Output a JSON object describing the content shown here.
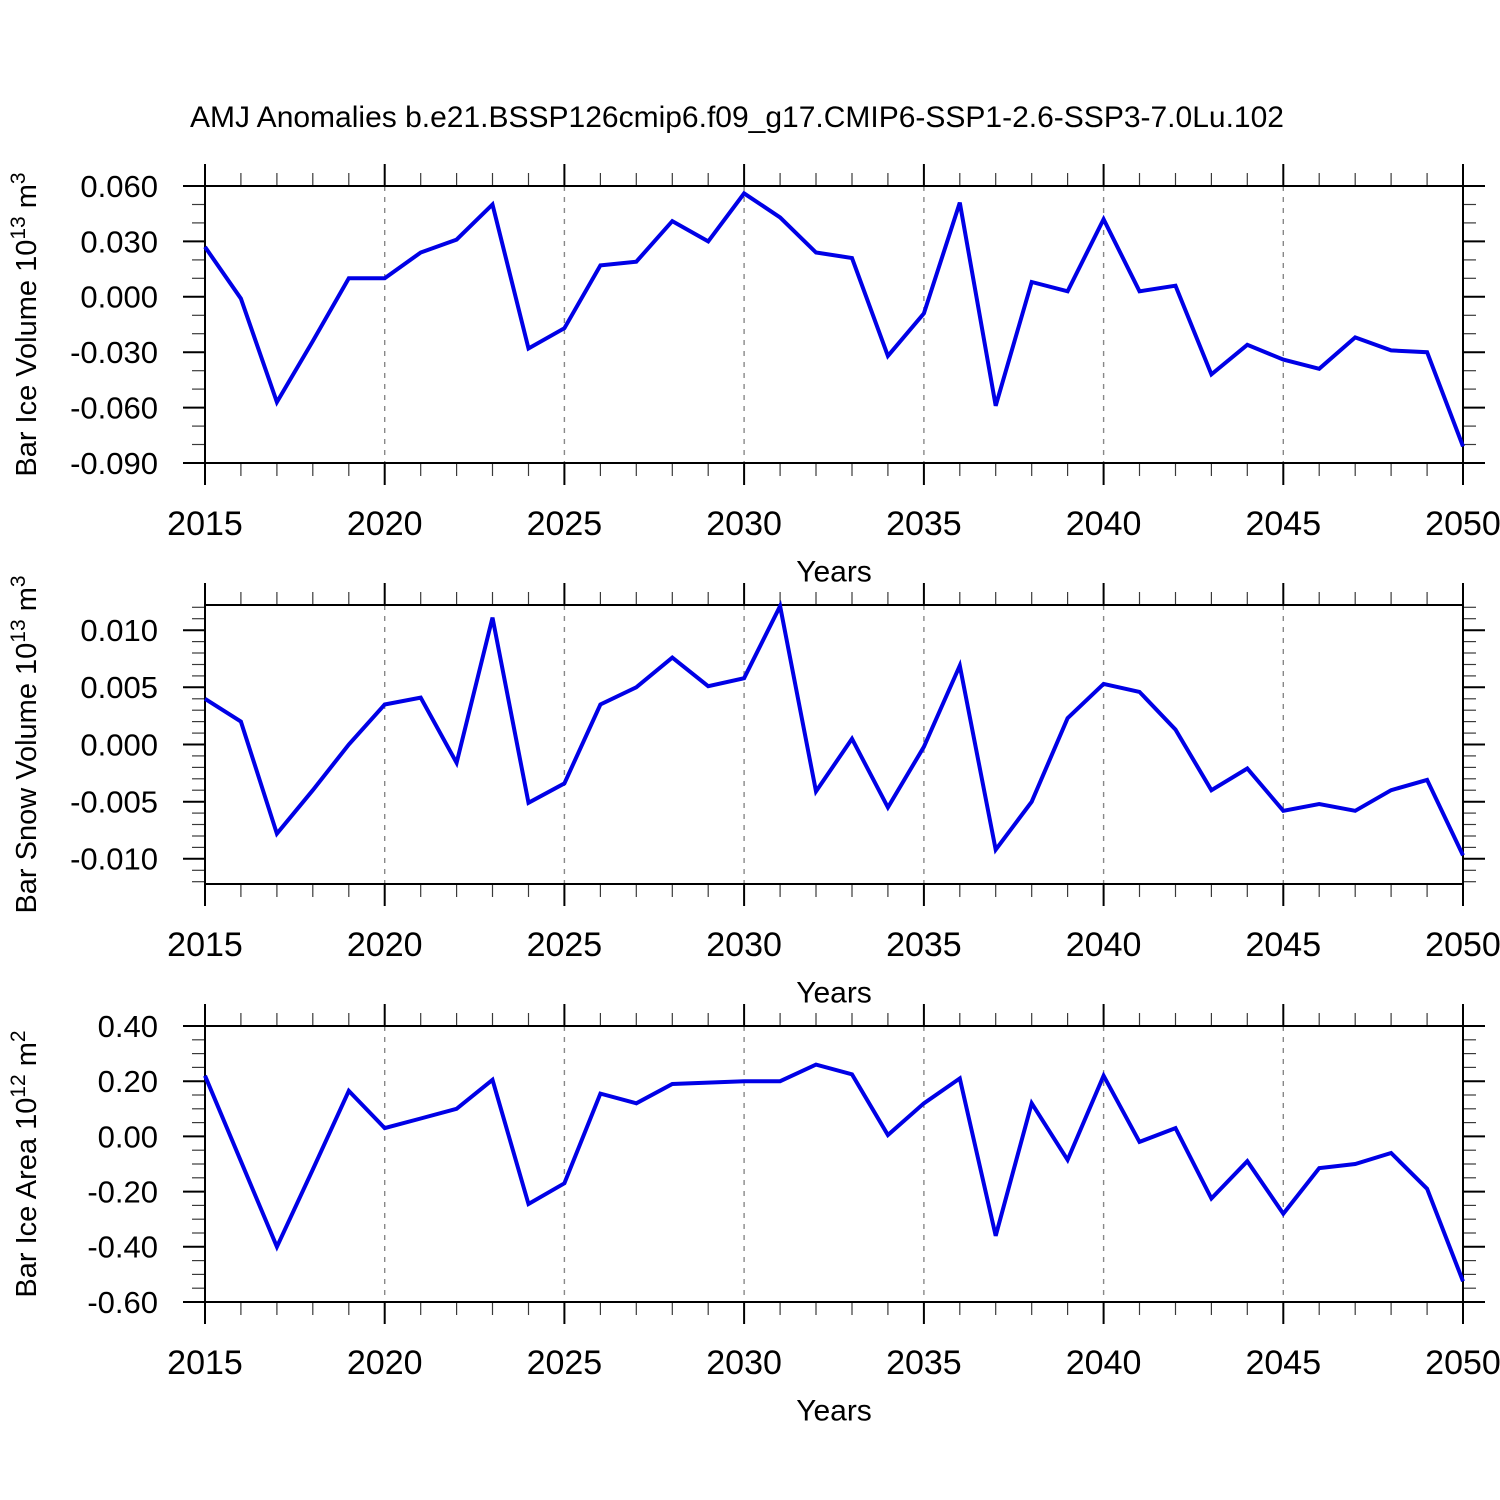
{
  "figure": {
    "title": "AMJ Anomalies b.e21.BSSP126cmip6.f09_g17.CMIP6-SSP1-2.6-SSP3-7.0Lu.102"
  },
  "colors": {
    "line": "#0000e6",
    "grid": "#888888",
    "axis": "#000000",
    "background": "#ffffff"
  },
  "chart_data": [
    {
      "type": "line",
      "title": "",
      "ylabel": "Bar Ice Volume 10^13 m^3",
      "ylabel_rich": [
        {
          "t": "Bar Ice Volume 10"
        },
        {
          "t": "13",
          "sup": true
        },
        {
          "t": " m"
        },
        {
          "t": "3",
          "sup": true
        }
      ],
      "xlabel": "Years",
      "xlim": [
        2015,
        2050
      ],
      "ylim": [
        -0.09,
        0.06
      ],
      "grid": "x-dashed",
      "legend": "none",
      "xticks_major": [
        2015,
        2020,
        2025,
        2030,
        2035,
        2040,
        2045,
        2050
      ],
      "xtick_labels": [
        "2015",
        "2020",
        "2025",
        "2030",
        "2035",
        "2040",
        "2045",
        "2050"
      ],
      "x_minor_step": 1,
      "grid_x": [
        2020,
        2025,
        2030,
        2035,
        2040,
        2045
      ],
      "yticks_major": [
        0.06,
        0.03,
        0.0,
        -0.03,
        -0.06,
        -0.09
      ],
      "ytick_labels": [
        "0.060",
        "0.030",
        "0.000",
        "-0.030",
        "-0.060",
        "-0.090"
      ],
      "y_minor_step": 0.01,
      "x": [
        2015,
        2016,
        2017,
        2018,
        2019,
        2020,
        2021,
        2022,
        2023,
        2024,
        2025,
        2026,
        2027,
        2028,
        2029,
        2030,
        2031,
        2032,
        2033,
        2034,
        2035,
        2036,
        2037,
        2038,
        2039,
        2040,
        2041,
        2042,
        2043,
        2044,
        2045,
        2046,
        2047,
        2048,
        2049,
        2050
      ],
      "values": [
        0.027,
        -0.001,
        -0.057,
        -0.024,
        0.01,
        0.01,
        0.024,
        0.031,
        0.05,
        -0.028,
        -0.017,
        0.017,
        0.019,
        0.041,
        0.03,
        0.056,
        0.043,
        0.024,
        0.021,
        -0.032,
        -0.009,
        0.051,
        -0.059,
        0.008,
        0.003,
        0.042,
        0.003,
        0.006,
        -0.042,
        -0.026,
        -0.034,
        -0.039,
        -0.022,
        -0.029,
        -0.03,
        -0.081
      ]
    },
    {
      "type": "line",
      "title": "",
      "ylabel": "Bar Snow Volume 10^13 m^3",
      "ylabel_rich": [
        {
          "t": "Bar Snow Volume 10"
        },
        {
          "t": "13",
          "sup": true
        },
        {
          "t": " m"
        },
        {
          "t": "3",
          "sup": true
        }
      ],
      "xlabel": "Years",
      "xlim": [
        2015,
        2050
      ],
      "ylim": [
        -0.0122,
        0.0122
      ],
      "grid": "x-dashed",
      "legend": "none",
      "xticks_major": [
        2015,
        2020,
        2025,
        2030,
        2035,
        2040,
        2045,
        2050
      ],
      "xtick_labels": [
        "2015",
        "2020",
        "2025",
        "2030",
        "2035",
        "2040",
        "2045",
        "2050"
      ],
      "x_minor_step": 1,
      "grid_x": [
        2020,
        2025,
        2030,
        2035,
        2040,
        2045
      ],
      "yticks_major": [
        0.01,
        0.005,
        0.0,
        -0.005,
        -0.01
      ],
      "ytick_labels": [
        "0.010",
        "0.005",
        "0.000",
        "-0.005",
        "-0.010"
      ],
      "y_minor_step": 0.001,
      "x": [
        2015,
        2016,
        2017,
        2018,
        2019,
        2020,
        2021,
        2022,
        2023,
        2024,
        2025,
        2026,
        2027,
        2028,
        2029,
        2030,
        2031,
        2032,
        2033,
        2034,
        2035,
        2036,
        2037,
        2038,
        2039,
        2040,
        2041,
        2042,
        2043,
        2044,
        2045,
        2046,
        2047,
        2048,
        2049,
        2050
      ],
      "values": [
        0.004,
        0.002,
        -0.0078,
        -0.004,
        0.0,
        0.0035,
        0.0041,
        -0.0016,
        0.0111,
        -0.0051,
        -0.0034,
        0.0035,
        0.005,
        0.0076,
        0.0051,
        0.0058,
        0.0121,
        -0.0041,
        0.0005,
        -0.0055,
        -0.0002,
        0.0069,
        -0.0092,
        -0.005,
        0.0023,
        0.0053,
        0.0046,
        0.0013,
        -0.004,
        -0.0021,
        -0.0058,
        -0.0052,
        -0.0058,
        -0.004,
        -0.0031,
        -0.0097
      ]
    },
    {
      "type": "line",
      "title": "",
      "ylabel": "Bar Ice Area 10^12 m^2",
      "ylabel_rich": [
        {
          "t": "Bar Ice Area 10"
        },
        {
          "t": "12",
          "sup": true
        },
        {
          "t": " m"
        },
        {
          "t": "2",
          "sup": true
        }
      ],
      "xlabel": "Years",
      "xlim": [
        2015,
        2050
      ],
      "ylim": [
        -0.6,
        0.4
      ],
      "grid": "x-dashed",
      "legend": "none",
      "xticks_major": [
        2015,
        2020,
        2025,
        2030,
        2035,
        2040,
        2045,
        2050
      ],
      "xtick_labels": [
        "2015",
        "2020",
        "2025",
        "2030",
        "2035",
        "2040",
        "2045",
        "2050"
      ],
      "x_minor_step": 1,
      "grid_x": [
        2020,
        2025,
        2030,
        2035,
        2040,
        2045
      ],
      "yticks_major": [
        0.4,
        0.2,
        0.0,
        -0.2,
        -0.4,
        -0.6
      ],
      "ytick_labels": [
        "0.40",
        "0.20",
        "0.00",
        "-0.20",
        "-0.40",
        "-0.60"
      ],
      "y_minor_step": 0.05,
      "x": [
        2015,
        2016,
        2017,
        2018,
        2019,
        2020,
        2021,
        2022,
        2023,
        2024,
        2025,
        2026,
        2027,
        2028,
        2029,
        2030,
        2031,
        2032,
        2033,
        2034,
        2035,
        2036,
        2037,
        2038,
        2039,
        2040,
        2041,
        2042,
        2043,
        2044,
        2045,
        2046,
        2047,
        2048,
        2049,
        2050
      ],
      "values": [
        0.22,
        -0.09,
        -0.4,
        -0.12,
        0.165,
        0.03,
        0.065,
        0.1,
        0.205,
        -0.245,
        -0.17,
        0.155,
        0.12,
        0.19,
        0.195,
        0.2,
        0.2,
        0.26,
        0.225,
        0.005,
        0.12,
        0.21,
        -0.36,
        0.12,
        -0.085,
        0.22,
        -0.02,
        0.03,
        -0.225,
        -0.09,
        -0.28,
        -0.115,
        -0.1,
        -0.06,
        -0.19,
        -0.525
      ]
    }
  ]
}
